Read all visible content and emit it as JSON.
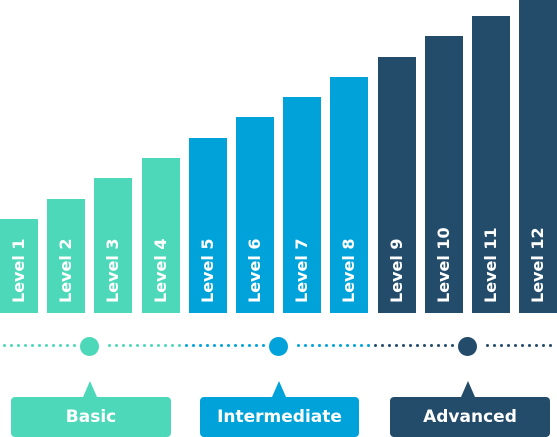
{
  "colors": {
    "basic": "#4dd9b9",
    "intermediate": "#00a3d9",
    "advanced": "#234b6a"
  },
  "groups": [
    {
      "key": "basic",
      "label": "Basic"
    },
    {
      "key": "intermediate",
      "label": "Intermediate"
    },
    {
      "key": "advanced",
      "label": "Advanced"
    }
  ],
  "levels": [
    {
      "label": "Level 1",
      "value": 1,
      "group": "basic"
    },
    {
      "label": "Level 2",
      "value": 2,
      "group": "basic"
    },
    {
      "label": "Level 3",
      "value": 3,
      "group": "basic"
    },
    {
      "label": "Level 4",
      "value": 4,
      "group": "basic"
    },
    {
      "label": "Level 5",
      "value": 5,
      "group": "intermediate"
    },
    {
      "label": "Level 6",
      "value": 6,
      "group": "intermediate"
    },
    {
      "label": "Level 7",
      "value": 7,
      "group": "intermediate"
    },
    {
      "label": "Level 8",
      "value": 8,
      "group": "intermediate"
    },
    {
      "label": "Level 9",
      "value": 9,
      "group": "advanced"
    },
    {
      "label": "Level 10",
      "value": 10,
      "group": "advanced"
    },
    {
      "label": "Level 11",
      "value": 11,
      "group": "advanced"
    },
    {
      "label": "Level 12",
      "value": 12,
      "group": "advanced"
    }
  ]
}
